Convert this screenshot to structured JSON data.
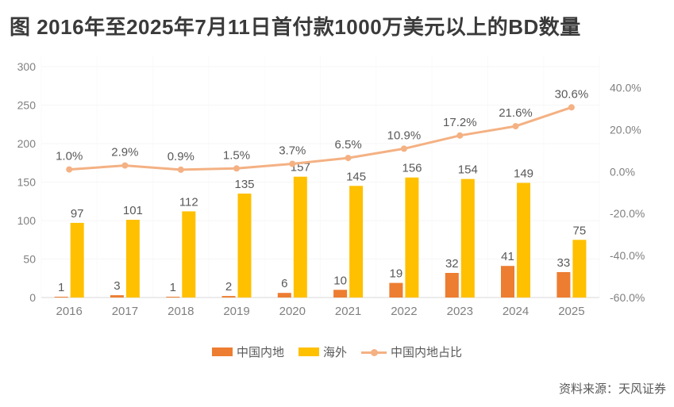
{
  "title": "图 2016年至2025年7月11日首付款1000万美元以上的BD数量",
  "source": "资料来源：天风证券",
  "colors": {
    "mainland_bar": "#ED7D31",
    "overseas_bar": "#FFC000",
    "ratio_line": "#F4B183",
    "axis_text": "#808080",
    "label_text": "#595959",
    "title_text": "#3a3a3a",
    "axis_line": "#D9D9D9",
    "grid_h": "#f6f6f6",
    "grid_v": "#fafafa"
  },
  "chart_data": {
    "type": "bar+line",
    "title": "图 2016年至2025年7月11日首付款1000万美元以上的BD数量",
    "categories": [
      "2016",
      "2017",
      "2018",
      "2019",
      "2020",
      "2021",
      "2022",
      "2023",
      "2024",
      "2025"
    ],
    "series": [
      {
        "name": "中国内地",
        "type": "bar",
        "axis": "left",
        "values": [
          1,
          3,
          1,
          2,
          6,
          10,
          19,
          32,
          41,
          33
        ]
      },
      {
        "name": "海外",
        "type": "bar",
        "axis": "left",
        "values": [
          97,
          101,
          112,
          135,
          157,
          145,
          156,
          154,
          149,
          75
        ]
      },
      {
        "name": "中国内地占比",
        "type": "line",
        "axis": "right",
        "values": [
          1.0,
          2.9,
          0.9,
          1.5,
          3.7,
          6.5,
          10.9,
          17.2,
          21.6,
          30.6
        ],
        "labels": [
          "1.0%",
          "2.9%",
          "0.9%",
          "1.5%",
          "3.7%",
          "6.5%",
          "10.9%",
          "17.2%",
          "21.6%",
          "30.6%"
        ]
      }
    ],
    "left_axis": {
      "min": 0,
      "max": 300,
      "ticks": [
        0,
        50,
        100,
        150,
        200,
        250,
        300
      ]
    },
    "right_axis": {
      "min": -60,
      "max": 50,
      "ticks": [
        {
          "v": 40,
          "label": "40.0%"
        },
        {
          "v": 20,
          "label": "20.0%"
        },
        {
          "v": 0,
          "label": "0.0%"
        },
        {
          "v": -20,
          "label": "-20.0%"
        },
        {
          "v": -40,
          "label": "-40.0%"
        },
        {
          "v": -60,
          "label": "-60.0%"
        }
      ]
    },
    "legend_position": "bottom",
    "grid": "faint"
  }
}
